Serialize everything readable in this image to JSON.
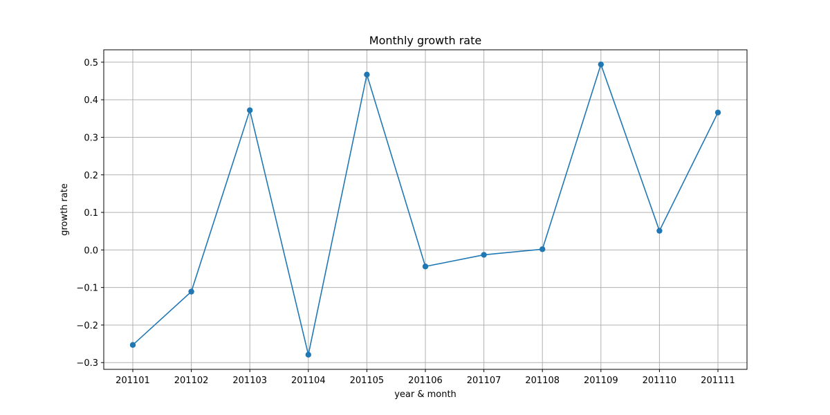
{
  "chart_data": {
    "type": "line",
    "title": "Monthly growth rate",
    "xlabel": "year & month",
    "ylabel": "growth rate",
    "categories": [
      "201101",
      "201102",
      "201103",
      "201104",
      "201105",
      "201106",
      "201107",
      "201108",
      "201109",
      "201110",
      "201111"
    ],
    "series": [
      {
        "values": [
          -0.253,
          -0.111,
          0.372,
          -0.279,
          0.467,
          -0.044,
          -0.013,
          0.002,
          0.494,
          0.051,
          0.366
        ],
        "color": "#1f77b4",
        "marker": "circle"
      }
    ],
    "ylim": [
      -0.318,
      0.533
    ],
    "yticks": [
      -0.3,
      -0.2,
      -0.1,
      0.0,
      0.1,
      0.2,
      0.3,
      0.4,
      0.5
    ],
    "ytick_labels": [
      "−0.3",
      "−0.2",
      "−0.1",
      "0.0",
      "0.1",
      "0.2",
      "0.3",
      "0.4",
      "0.5"
    ],
    "grid": true,
    "legend": false
  }
}
